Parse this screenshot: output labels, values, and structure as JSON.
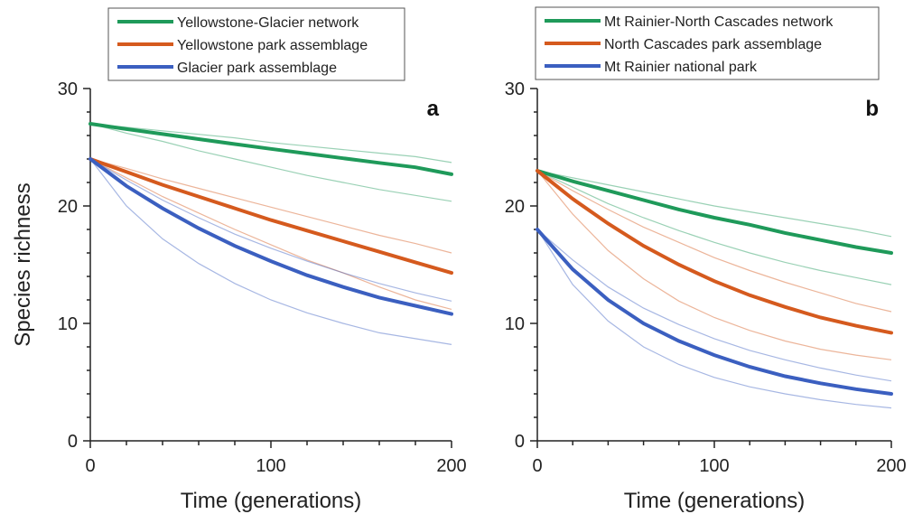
{
  "chart_data": [
    {
      "type": "line",
      "panel_label": "a",
      "xlabel": "Time (generations)",
      "ylabel": "Species richness",
      "xlim": [
        0,
        200
      ],
      "ylim": [
        0,
        30
      ],
      "x_ticks": [
        0,
        100,
        200
      ],
      "y_ticks": [
        0,
        10,
        20,
        30
      ],
      "grid": false,
      "legend": "top-left",
      "x": [
        0,
        20,
        40,
        60,
        80,
        100,
        120,
        140,
        160,
        180,
        200
      ],
      "series": [
        {
          "name": "Yellowstone-Glacier network",
          "color": "#1f9a5a",
          "values": [
            27.0,
            26.55,
            26.12,
            25.69,
            25.27,
            24.86,
            24.46,
            24.06,
            23.67,
            23.29,
            22.7
          ],
          "upper": [
            27.0,
            26.7,
            26.4,
            26.1,
            25.8,
            25.4,
            25.1,
            24.8,
            24.5,
            24.2,
            23.7
          ],
          "lower": [
            27.0,
            26.2,
            25.5,
            24.7,
            24.0,
            23.3,
            22.6,
            22.0,
            21.4,
            20.9,
            20.4
          ]
        },
        {
          "name": "Yellowstone park assemblage",
          "color": "#d55a1e",
          "values": [
            24.0,
            22.9,
            21.8,
            20.8,
            19.8,
            18.8,
            17.9,
            17.0,
            16.1,
            15.2,
            14.3
          ],
          "upper": [
            24.0,
            23.2,
            22.3,
            21.5,
            20.7,
            19.9,
            19.1,
            18.3,
            17.5,
            16.8,
            16.0
          ],
          "lower": [
            24.0,
            22.4,
            20.8,
            19.4,
            18.0,
            16.7,
            15.4,
            14.3,
            13.1,
            12.0,
            11.2
          ]
        },
        {
          "name": "Glacier park assemblage",
          "color": "#3b5fc0",
          "values": [
            24.0,
            21.7,
            19.8,
            18.1,
            16.6,
            15.3,
            14.1,
            13.1,
            12.2,
            11.5,
            10.8
          ],
          "upper": [
            24.0,
            22.2,
            20.5,
            19.0,
            17.6,
            16.4,
            15.3,
            14.3,
            13.4,
            12.6,
            11.9
          ],
          "lower": [
            24.0,
            20.0,
            17.2,
            15.1,
            13.4,
            12.0,
            10.9,
            10.0,
            9.2,
            8.7,
            8.2
          ]
        }
      ]
    },
    {
      "type": "line",
      "panel_label": "b",
      "xlabel": "Time (generations)",
      "ylabel": "",
      "xlim": [
        0,
        200
      ],
      "ylim": [
        0,
        30
      ],
      "x_ticks": [
        0,
        100,
        200
      ],
      "y_ticks": [
        0,
        10,
        20,
        30
      ],
      "grid": false,
      "legend": "top-left",
      "x": [
        0,
        20,
        40,
        60,
        80,
        100,
        120,
        140,
        160,
        180,
        200
      ],
      "series": [
        {
          "name": "Mt Rainier-North Cascades network",
          "color": "#1f9a5a",
          "values": [
            23.0,
            22.1,
            21.3,
            20.5,
            19.7,
            19.0,
            18.4,
            17.7,
            17.1,
            16.5,
            16.0
          ],
          "upper": [
            23.0,
            22.4,
            21.8,
            21.2,
            20.6,
            20.0,
            19.5,
            19.0,
            18.5,
            18.0,
            17.4
          ],
          "lower": [
            23.0,
            21.6,
            20.2,
            19.0,
            17.9,
            16.9,
            16.0,
            15.2,
            14.5,
            13.9,
            13.3
          ]
        },
        {
          "name": "North Cascades park assemblage",
          "color": "#d55a1e",
          "values": [
            23.0,
            20.6,
            18.5,
            16.6,
            15.0,
            13.6,
            12.4,
            11.4,
            10.5,
            9.8,
            9.2
          ],
          "upper": [
            23.0,
            21.3,
            19.7,
            18.2,
            16.9,
            15.6,
            14.5,
            13.5,
            12.6,
            11.7,
            11.0
          ],
          "lower": [
            23.0,
            19.3,
            16.2,
            13.8,
            11.9,
            10.5,
            9.4,
            8.5,
            7.8,
            7.3,
            6.9
          ]
        },
        {
          "name": "Mt Rainier national park",
          "color": "#3b5fc0",
          "values": [
            18.0,
            14.6,
            12.0,
            10.0,
            8.5,
            7.3,
            6.3,
            5.5,
            4.9,
            4.4,
            4.0
          ],
          "upper": [
            18.0,
            15.4,
            13.1,
            11.3,
            9.9,
            8.7,
            7.7,
            6.9,
            6.2,
            5.6,
            5.1
          ],
          "lower": [
            18.0,
            13.3,
            10.2,
            8.0,
            6.5,
            5.4,
            4.6,
            4.0,
            3.5,
            3.1,
            2.8
          ]
        }
      ]
    }
  ]
}
